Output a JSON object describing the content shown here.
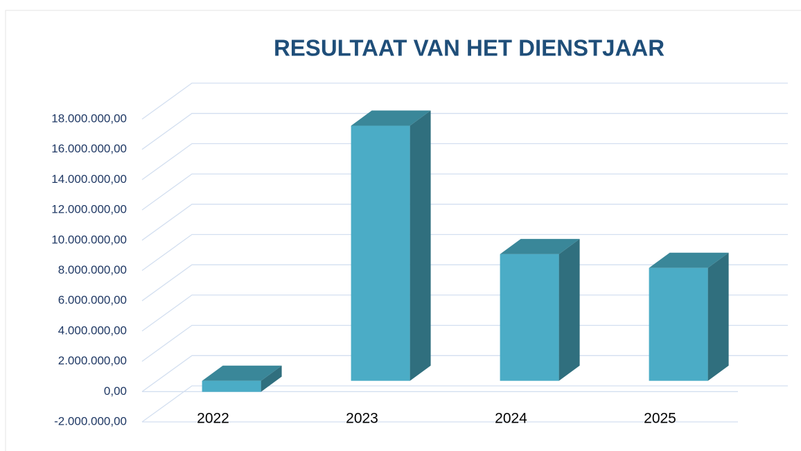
{
  "chart_data": {
    "type": "bar3d",
    "title": "RESULTAAT VAN HET DIENSTJAAR",
    "categories": [
      "2022",
      "2023",
      "2024",
      "2025"
    ],
    "values": [
      -730000,
      16850000,
      8370000,
      7460000
    ],
    "color": "#4bacc6",
    "ylim": [
      -2000000,
      18000000
    ],
    "yticks": [
      {
        "value": -2000000,
        "label": "-2.000.000,00"
      },
      {
        "value": 0,
        "label": "0,00"
      },
      {
        "value": 2000000,
        "label": "2.000.000,00"
      },
      {
        "value": 4000000,
        "label": "4.000.000,00"
      },
      {
        "value": 6000000,
        "label": "6.000.000,00"
      },
      {
        "value": 8000000,
        "label": "8.000.000,00"
      },
      {
        "value": 10000000,
        "label": "10.000.000,00"
      },
      {
        "value": 12000000,
        "label": "12.000.000,00"
      },
      {
        "value": 14000000,
        "label": "14.000.000,00"
      },
      {
        "value": 16000000,
        "label": "16.000.000,00"
      },
      {
        "value": 18000000,
        "label": "18.000.000,00"
      }
    ],
    "grid": true
  }
}
